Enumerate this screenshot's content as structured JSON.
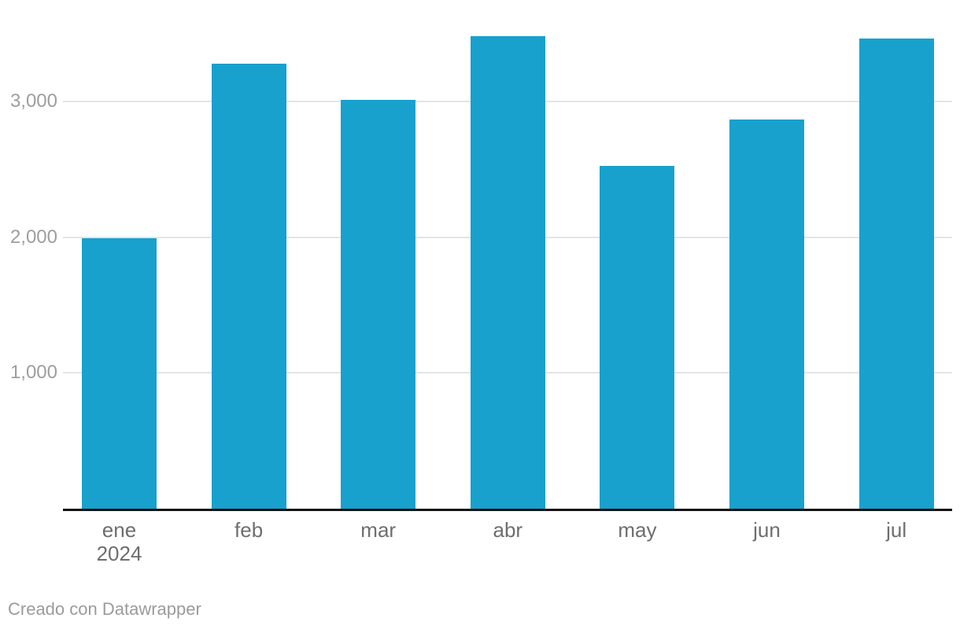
{
  "chart_data": {
    "type": "bar",
    "title": "",
    "xlabel": "",
    "ylabel": "",
    "categories": [
      "ene 2024",
      "feb",
      "mar",
      "abr",
      "may",
      "jun",
      "jul"
    ],
    "values": [
      1990,
      3280,
      3010,
      3480,
      2525,
      2865,
      3465
    ],
    "x_ticks": [
      {
        "label": "ene",
        "sublabel": "2024"
      },
      {
        "label": "feb"
      },
      {
        "label": "mar"
      },
      {
        "label": "abr"
      },
      {
        "label": "may"
      },
      {
        "label": "jun"
      },
      {
        "label": "jul"
      }
    ],
    "yticks": [
      1000,
      2000,
      3000
    ],
    "ytick_labels": [
      "1,000",
      "2,000",
      "3,000"
    ],
    "ylim": [
      0,
      3745
    ],
    "grid": "horizontal-y",
    "legend": "none",
    "series_count": 1
  },
  "footer": {
    "text": "Creado con Datawrapper"
  },
  "colors": {
    "bar": "#18a1cd",
    "gridline": "#e4e4e4",
    "axis_line": "#121212",
    "y_tick_text": "#9e9e9e",
    "x_tick_text": "#6e6e6e",
    "footer_text": "#9b9b9b",
    "background": "#ffffff"
  }
}
